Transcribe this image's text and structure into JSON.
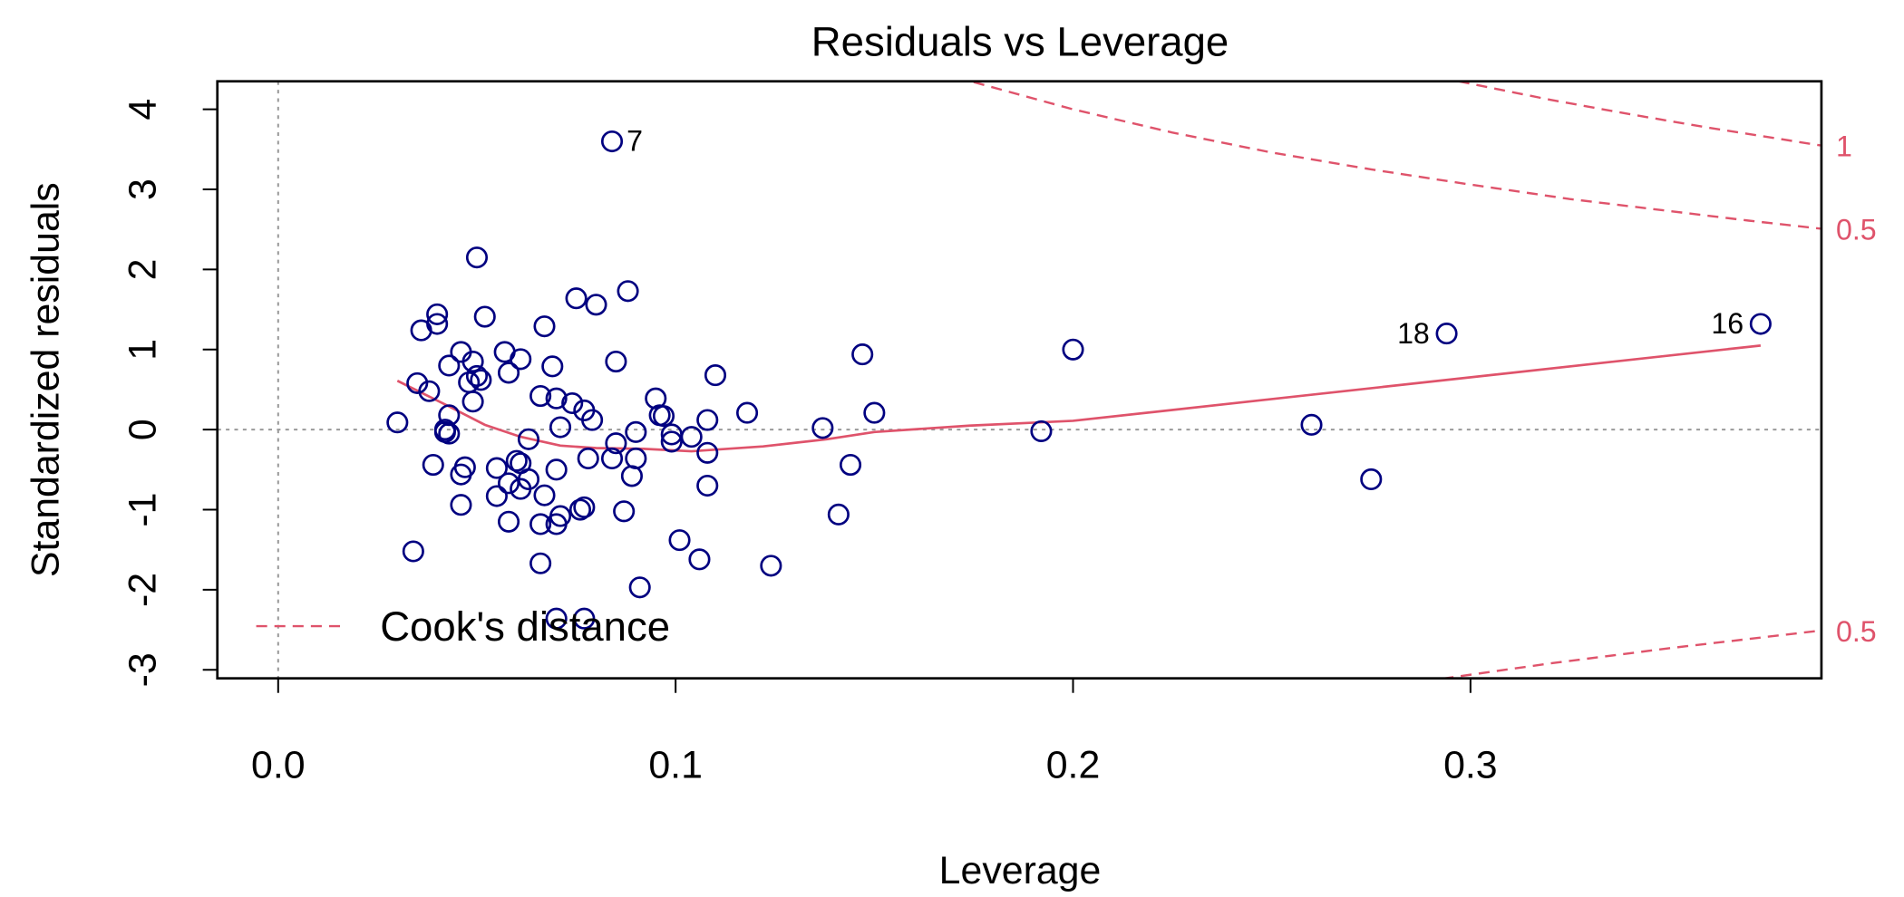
{
  "chart_data": {
    "type": "scatter",
    "title": "Residuals vs Leverage",
    "x_label": "Leverage",
    "y_label": "Standardized residuals",
    "xlim": [
      -0.0153,
      0.3883
    ],
    "ylim": [
      -3.106,
      4.35
    ],
    "xticks": [
      {
        "value": 0,
        "label": "0.0"
      },
      0.1,
      0.2,
      0.3
    ],
    "yticks": [
      -3,
      -2,
      -1,
      0,
      1,
      2,
      3,
      4
    ],
    "color": "#000080",
    "x": [
      0.084,
      0.03,
      0.035,
      0.034,
      0.036,
      0.038,
      0.039,
      0.04,
      0.04,
      0.042,
      0.042,
      0.043,
      0.043,
      0.043,
      0.046,
      0.046,
      0.046,
      0.047,
      0.048,
      0.049,
      0.049,
      0.05,
      0.05,
      0.051,
      0.052,
      0.055,
      0.055,
      0.057,
      0.058,
      0.058,
      0.058,
      0.06,
      0.061,
      0.061,
      0.061,
      0.063,
      0.063,
      0.066,
      0.066,
      0.066,
      0.067,
      0.067,
      0.069,
      0.07,
      0.07,
      0.07,
      0.071,
      0.071,
      0.07,
      0.074,
      0.075,
      0.076,
      0.077,
      0.077,
      0.077,
      0.079,
      0.078,
      0.08,
      0.084,
      0.085,
      0.085,
      0.087,
      0.088,
      0.089,
      0.09,
      0.09,
      0.091,
      0.095,
      0.096,
      0.097,
      0.099,
      0.099,
      0.101,
      0.104,
      0.106,
      0.108,
      0.108,
      0.108,
      0.11,
      0.118,
      0.124,
      0.137,
      0.141,
      0.144,
      0.147,
      0.15,
      0.192,
      0.2,
      0.26,
      0.275,
      0.294,
      0.373
    ],
    "y": [
      3.6,
      0.09,
      0.58,
      -1.52,
      1.24,
      0.48,
      -0.44,
      1.44,
      1.32,
      -0.03,
      0,
      0.8,
      0.18,
      -0.05,
      -0.56,
      -0.94,
      0.97,
      -0.47,
      0.59,
      0.85,
      0.35,
      2.15,
      0.67,
      0.62,
      1.41,
      -0.48,
      -0.83,
      0.97,
      -1.15,
      0.71,
      -0.67,
      -0.39,
      0.88,
      -0.74,
      -0.42,
      -0.12,
      -0.62,
      0.42,
      -1.18,
      -1.67,
      1.29,
      -0.82,
      0.79,
      0.39,
      -0.5,
      -1.18,
      -1.08,
      0.03,
      -2.36,
      0.33,
      1.64,
      -1.0,
      -0.97,
      0.24,
      -2.36,
      0.12,
      -0.36,
      1.56,
      -0.36,
      0.85,
      -0.17,
      -1.02,
      1.73,
      -0.58,
      -0.03,
      -0.36,
      -1.97,
      0.39,
      0.18,
      0.17,
      -0.06,
      -0.15,
      -1.38,
      -0.09,
      -1.62,
      0.12,
      -0.7,
      -0.29,
      0.68,
      0.21,
      -1.7,
      0.02,
      -1.06,
      -0.44,
      0.94,
      0.21,
      -0.02,
      1.0,
      0.06,
      -0.62,
      1.2,
      1.32
    ],
    "point_labels": [
      "7",
      null,
      null,
      null,
      null,
      null,
      null,
      null,
      null,
      null,
      null,
      null,
      null,
      null,
      null,
      null,
      null,
      null,
      null,
      null,
      null,
      null,
      null,
      null,
      null,
      null,
      null,
      null,
      null,
      null,
      null,
      null,
      null,
      null,
      null,
      null,
      null,
      null,
      null,
      null,
      null,
      null,
      null,
      null,
      null,
      null,
      null,
      null,
      null,
      null,
      null,
      null,
      null,
      null,
      null,
      null,
      null,
      null,
      null,
      null,
      null,
      null,
      null,
      null,
      null,
      null,
      null,
      null,
      null,
      null,
      null,
      null,
      null,
      null,
      null,
      null,
      null,
      null,
      null,
      null,
      null,
      null,
      null,
      null,
      null,
      null,
      null,
      null,
      null,
      null,
      "18",
      "16"
    ],
    "smooth": {
      "color": "#DF536B",
      "x": [
        0.03,
        0.043,
        0.052,
        0.061,
        0.071,
        0.08,
        0.092,
        0.104,
        0.122,
        0.138,
        0.15,
        0.174,
        0.2,
        0.373
      ],
      "y": [
        0.61,
        0.29,
        0.06,
        -0.09,
        -0.2,
        -0.23,
        -0.24,
        -0.27,
        -0.21,
        -0.12,
        -0.03,
        0.05,
        0.11,
        1.05
      ]
    },
    "cook_distance": {
      "name": "Cook's distance",
      "color": "#DF536B",
      "lines": [
        {
          "label": "0.5",
          "x": [
            0.175,
            0.2,
            0.225,
            0.25,
            0.275,
            0.3,
            0.325,
            0.35,
            0.37,
            0.388
          ],
          "y": [
            4.34,
            4.0,
            3.71,
            3.46,
            3.25,
            3.06,
            2.88,
            2.73,
            2.61,
            2.51
          ]
        },
        {
          "label": "1",
          "x": [
            0.297,
            0.32,
            0.34,
            0.36,
            0.388
          ],
          "y": [
            4.35,
            4.12,
            3.94,
            3.77,
            3.55
          ]
        },
        {
          "label": "0.5",
          "x": [
            0.293,
            0.32,
            0.35,
            0.388
          ],
          "y": [
            -3.11,
            -2.92,
            -2.73,
            -2.51
          ]
        }
      ]
    },
    "reference_lines": {
      "x": 0,
      "y": 0
    },
    "legend": "bottomleft"
  }
}
